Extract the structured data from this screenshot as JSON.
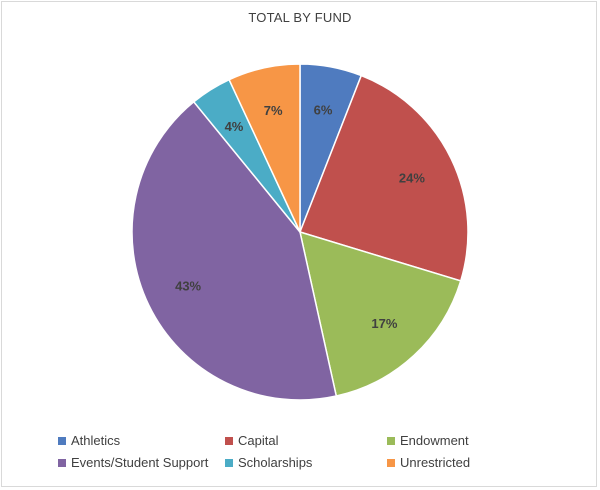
{
  "chart_data": {
    "type": "pie",
    "title": "TOTAL BY FUND",
    "categories": [
      "Athletics",
      "Capital",
      "Endowment",
      "Events/Student Support",
      "Scholarships",
      "Unrestricted"
    ],
    "values": [
      6,
      24,
      17,
      43,
      4,
      7
    ],
    "labels": [
      "6%",
      "24%",
      "17%",
      "43%",
      "4%",
      "7%"
    ],
    "colors": [
      "#4f7bbf",
      "#c0504d",
      "#9bbb59",
      "#8064a2",
      "#4bacc6",
      "#f79646"
    ],
    "legend_position": "bottom"
  }
}
